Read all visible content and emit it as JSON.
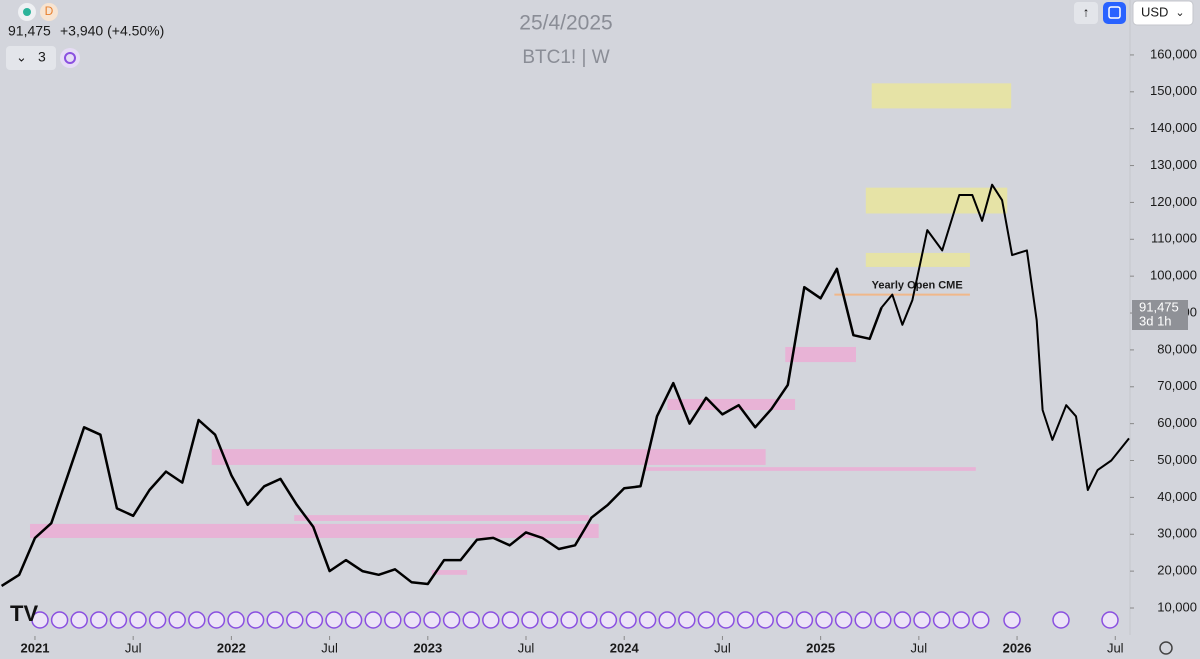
{
  "header": {
    "date": "25/4/2025",
    "symbol": "BTC1! | W",
    "price": "91,475",
    "change": "+3,940 (+4.50%)",
    "indicator_count": "3",
    "icon_letter": "D",
    "currency": "USD",
    "badge_price": "91,475",
    "badge_countdown": "3d 1h"
  },
  "chart_data": {
    "type": "line",
    "xlim": [
      2020.822,
      2026.575
    ],
    "ylim": [
      1320,
      174900
    ],
    "xticks": [
      {
        "value": 2021,
        "label": "2021"
      },
      {
        "value": 2021.5,
        "label": "Jul"
      },
      {
        "value": 2022,
        "label": "2022"
      },
      {
        "value": 2022.5,
        "label": "Jul"
      },
      {
        "value": 2023,
        "label": "2023"
      },
      {
        "value": 2023.5,
        "label": "Jul"
      },
      {
        "value": 2024,
        "label": "2024"
      },
      {
        "value": 2024.5,
        "label": "Jul"
      },
      {
        "value": 2025,
        "label": "2025"
      },
      {
        "value": 2025.5,
        "label": "Jul"
      },
      {
        "value": 2026,
        "label": "2026"
      },
      {
        "value": 2026.5,
        "label": "Jul"
      }
    ],
    "yticks": [
      {
        "value": 10000,
        "label": "10,000"
      },
      {
        "value": 20000,
        "label": "20,000"
      },
      {
        "value": 30000,
        "label": "30,000"
      },
      {
        "value": 40000,
        "label": "40,000"
      },
      {
        "value": 50000,
        "label": "50,000"
      },
      {
        "value": 60000,
        "label": "60,000"
      },
      {
        "value": 70000,
        "label": "70,000"
      },
      {
        "value": 80000,
        "label": "80,000"
      },
      {
        "value": 90000,
        "label": "90,000"
      },
      {
        "value": 100000,
        "label": "100,000"
      },
      {
        "value": 110000,
        "label": "110,000"
      },
      {
        "value": 120000,
        "label": "120,000"
      },
      {
        "value": 130000,
        "label": "130,000"
      },
      {
        "value": 140000,
        "label": "140,000"
      },
      {
        "value": 150000,
        "label": "150,000"
      },
      {
        "value": 160000,
        "label": "160,000"
      }
    ],
    "series": [
      {
        "color": "#000000",
        "width": 2.5,
        "x": [
          2020.83,
          2020.92,
          2021.0,
          2021.083,
          2021.167,
          2021.25,
          2021.333,
          2021.417,
          2021.5,
          2021.583,
          2021.667,
          2021.75,
          2021.833,
          2021.917,
          2022.0,
          2022.083,
          2022.167,
          2022.25,
          2022.333,
          2022.417,
          2022.5,
          2022.583,
          2022.667,
          2022.75,
          2022.833,
          2022.917,
          2023.0,
          2023.083,
          2023.167,
          2023.25,
          2023.333,
          2023.417,
          2023.5,
          2023.583,
          2023.667,
          2023.75,
          2023.833,
          2023.917,
          2024.0,
          2024.083,
          2024.167,
          2024.25,
          2024.333,
          2024.417,
          2024.5,
          2024.583,
          2024.667,
          2024.75,
          2024.833,
          2024.917,
          2025.0,
          2025.083,
          2025.167,
          2025.25,
          2025.31
        ],
        "values": [
          16000,
          19000,
          29000,
          33000,
          46000,
          59000,
          57000,
          37000,
          35000,
          42000,
          47000,
          44000,
          61000,
          57000,
          46000,
          38000,
          43000,
          45000,
          38000,
          32000,
          20000,
          23000,
          20000,
          19000,
          20500,
          17000,
          16500,
          23000,
          23000,
          28500,
          29000,
          27000,
          30500,
          29000,
          26000,
          27000,
          34500,
          38000,
          42500,
          43000,
          62000,
          71000,
          60000,
          67000,
          62500,
          65000,
          59000,
          64000,
          70500,
          97000,
          94000,
          102000,
          84000,
          83000,
          91475
        ]
      },
      {
        "color": "#000000",
        "width": 2,
        "x": [
          2025.31,
          2025.365,
          2025.416,
          2025.467,
          2025.543,
          2025.619,
          2025.706,
          2025.772,
          2025.822,
          2025.873,
          2025.924,
          2025.975,
          2026.05,
          2026.1,
          2026.13,
          2026.18,
          2026.25,
          2026.3,
          2026.36,
          2026.41,
          2026.48,
          2026.57
        ],
        "values": [
          91475,
          95000,
          86800,
          93500,
          112500,
          107000,
          122000,
          122000,
          115000,
          124800,
          120600,
          105700,
          107000,
          88000,
          63700,
          55600,
          65000,
          62000,
          42000,
          47400,
          50000,
          56000
        ]
      }
    ],
    "zones": [
      {
        "x": [
          2025.26,
          2025.97
        ],
        "y": [
          145500,
          152300
        ],
        "color": "#e6e3a6"
      },
      {
        "x": [
          2025.23,
          2025.95
        ],
        "y": [
          117000,
          124000
        ],
        "color": "#e6e3a6"
      },
      {
        "x": [
          2025.23,
          2025.76
        ],
        "y": [
          102500,
          106300
        ],
        "color": "#e6e3a6"
      },
      {
        "x": [
          2024.82,
          2025.18
        ],
        "y": [
          76700,
          80800
        ],
        "color": "#e8b3d6"
      },
      {
        "x": [
          2024.22,
          2024.87
        ],
        "y": [
          63700,
          66700
        ],
        "color": "#e8b3d6"
      },
      {
        "x": [
          2021.9,
          2024.72
        ],
        "y": [
          48800,
          53100
        ],
        "color": "#e8b3d6"
      },
      {
        "x": [
          2024.1,
          2025.79
        ],
        "y": [
          47200,
          48200
        ],
        "color": "#e8b3d6"
      },
      {
        "x": [
          2020.975,
          2023.87
        ],
        "y": [
          29000,
          32800
        ],
        "color": "#e8b3d6"
      },
      {
        "x": [
          2022.32,
          2023.82
        ],
        "y": [
          33600,
          35200
        ],
        "color": "#e8b3d6"
      },
      {
        "x": [
          2023.02,
          2023.2
        ],
        "y": [
          19000,
          20300
        ],
        "color": "#e8b3d6"
      }
    ],
    "annotation": {
      "text": "Yearly Open CME",
      "x": [
        2025.07,
        2025.76
      ],
      "y": 95000,
      "color": "#f0b88a"
    }
  }
}
